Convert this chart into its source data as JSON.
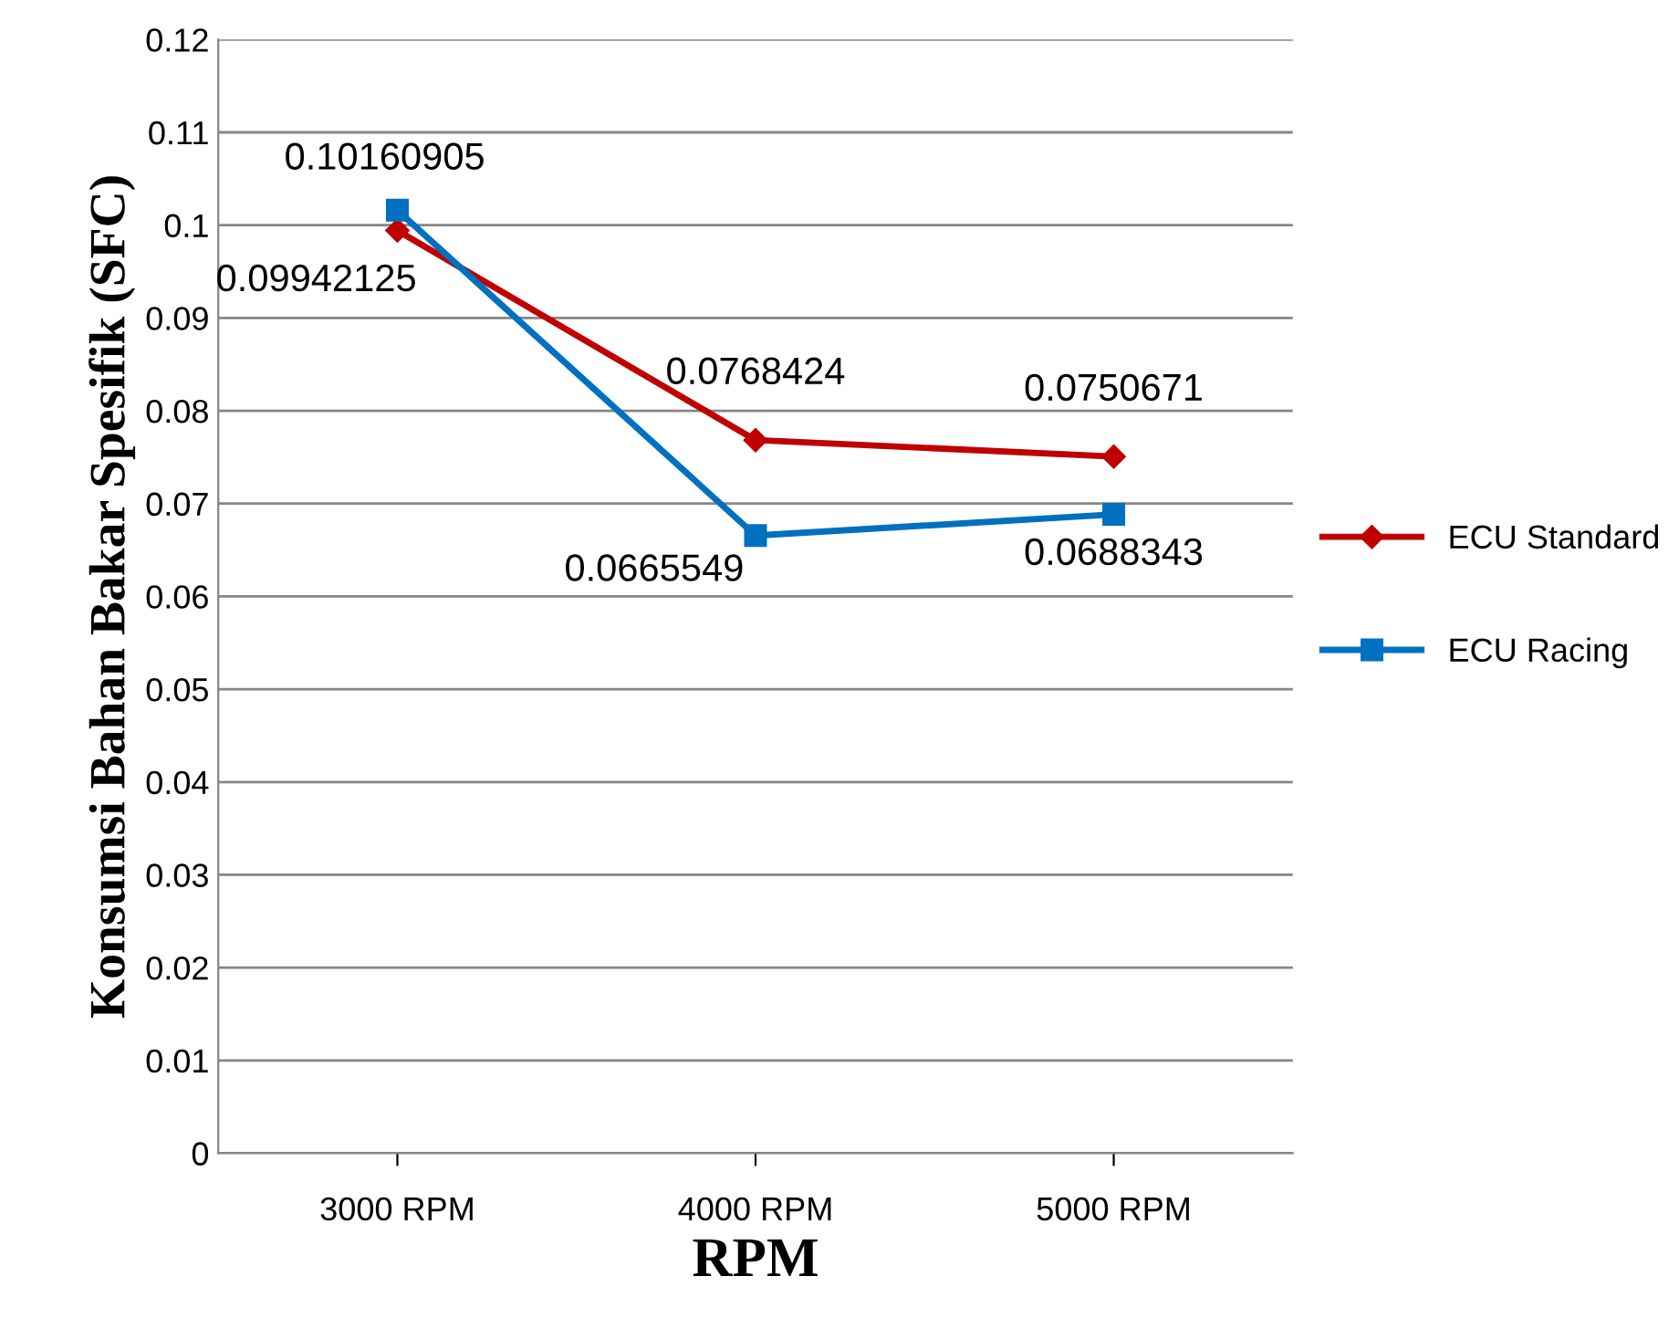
{
  "chart_data": {
    "type": "line",
    "xlabel": "RPM",
    "ylabel": "Konsumsi Bahan Bakar Spesifik (SFC)",
    "categories": [
      "3000 RPM",
      "4000 RPM",
      "5000 RPM"
    ],
    "series": [
      {
        "name": "ECU Standard",
        "color": "#c00000",
        "marker": "diamond",
        "values": [
          0.09942125,
          0.0768424,
          0.0750671
        ]
      },
      {
        "name": "ECU Racing",
        "color": "#0070c0",
        "marker": "square",
        "values": [
          0.10160905,
          0.0665549,
          0.0688343
        ]
      }
    ],
    "ylim": [
      0,
      0.12
    ],
    "yticks": [
      0,
      0.01,
      0.02,
      0.03,
      0.04,
      0.05,
      0.06,
      0.07,
      0.08,
      0.09,
      0.1,
      0.11,
      0.12
    ],
    "grid": "y",
    "legend": "right",
    "data_labels": true
  }
}
